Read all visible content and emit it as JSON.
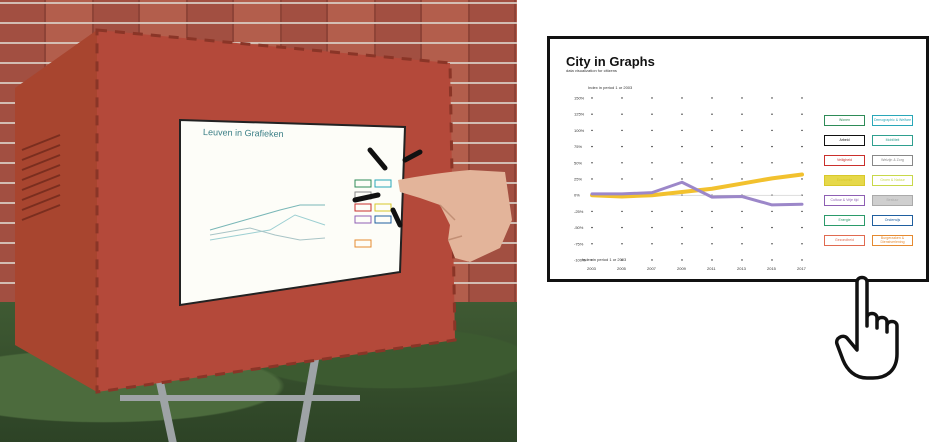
{
  "photo": {
    "screen": {
      "title": "Leuven in Grafieken"
    }
  },
  "illustration": {
    "title": "City in Graphs",
    "subtitle": "data visualization for citizens",
    "top_note": "Index in period 1 or 2003",
    "bottom_note": "Index in period 1 or 2003",
    "line_colors": [
      "#f2c12e",
      "#9c87c9"
    ],
    "buttons": [
      {
        "label": "Wonen",
        "color": "#2e8b57"
      },
      {
        "label": "Demographic & Welfare",
        "color": "#29a7b8"
      },
      {
        "label": "Arbeid",
        "color": "#111111"
      },
      {
        "label": "Mobiliteit",
        "color": "#2f9f8f"
      },
      {
        "label": "Veiligheid",
        "color": "#c9302c"
      },
      {
        "label": "Welzijn & Zorg",
        "color": "#888888"
      },
      {
        "label": "Economie",
        "color": "#d8c82a"
      },
      {
        "label": "Groen & Natuur",
        "color": "#c8d84a"
      },
      {
        "label": "Cultuur & Vrije tijd",
        "color": "#8e5fb3"
      },
      {
        "label": "Bestuur",
        "color": "#aaaaaa"
      },
      {
        "label": "Energie",
        "color": "#2b9a6a"
      },
      {
        "label": "Onderwijs",
        "color": "#1f5f9f"
      },
      {
        "label": "Gezondheid",
        "color": "#e06a50"
      },
      {
        "label": "Burgerzaken & Dienstverlening",
        "color": "#e58a30"
      }
    ]
  },
  "chart_data": {
    "type": "line",
    "title": "",
    "xlabel": "",
    "ylabel": "",
    "x": [
      2003,
      2005,
      2007,
      2009,
      2011,
      2013,
      2015,
      2017
    ],
    "ylim": [
      -100,
      150
    ],
    "yticks": [
      -100,
      -75,
      -50,
      -25,
      0,
      25,
      50,
      75,
      100,
      125,
      150
    ],
    "grid": true,
    "series": [
      {
        "color": "#f2c12e",
        "values": [
          0,
          -2,
          0,
          5,
          10,
          18,
          26,
          32
        ]
      },
      {
        "color": "#9c87c9",
        "values": [
          2,
          2,
          4,
          20,
          -3,
          -2,
          -15,
          -14
        ]
      }
    ]
  }
}
